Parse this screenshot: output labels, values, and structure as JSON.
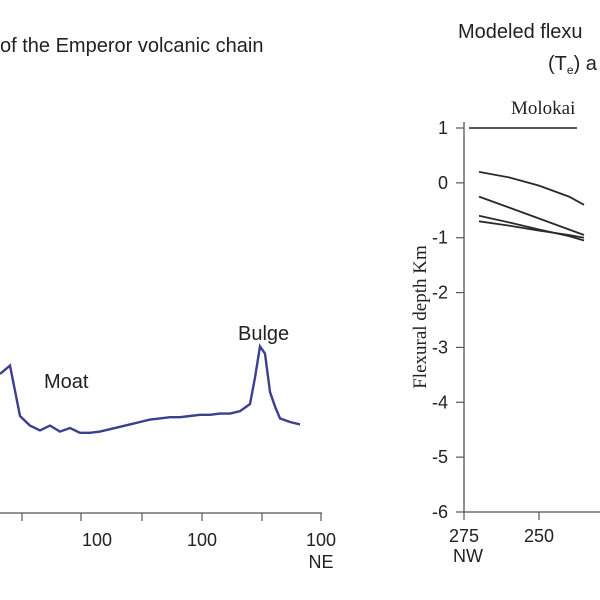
{
  "chart_data": [
    {
      "type": "line",
      "title": "of the Emperor volcanic chain",
      "xlabel": "NE",
      "x_tick_labels": [
        "100",
        "100",
        "100"
      ],
      "annotations": [
        "Bulge",
        "Moat"
      ],
      "colors": {
        "profile": "#3b3f8c"
      },
      "series": [
        {
          "values_note_free": true,
          "x": [
            0,
            10,
            20,
            30,
            40,
            50,
            60,
            70,
            80,
            90,
            100,
            110,
            120,
            130,
            140,
            150,
            160,
            170,
            180,
            190,
            200,
            210,
            220,
            230,
            240,
            250,
            255,
            260,
            265,
            270,
            275,
            280,
            290,
            300
          ],
          "y": [
            0.55,
            0.62,
            0.2,
            0.12,
            0.08,
            0.12,
            0.07,
            0.1,
            0.06,
            0.06,
            0.07,
            0.09,
            0.11,
            0.13,
            0.15,
            0.17,
            0.18,
            0.19,
            0.19,
            0.2,
            0.21,
            0.21,
            0.22,
            0.22,
            0.24,
            0.3,
            0.52,
            0.78,
            0.72,
            0.4,
            0.28,
            0.18,
            0.15,
            0.13
          ]
        }
      ]
    },
    {
      "type": "line",
      "title": "Modeled flexu",
      "subtitle_prefix": "(T",
      "subtitle_sub": "e",
      "subtitle_suffix": ") a",
      "ylabel": "Flexural depth Km",
      "xlabel": "NW",
      "ylim": [
        -6,
        1
      ],
      "y_ticks": [
        1,
        0,
        -1,
        -2,
        -3,
        -4,
        -5,
        -6
      ],
      "x_tick_labels": [
        "275",
        "250"
      ],
      "annotations": [
        "Molokai"
      ],
      "series": [
        {
          "x": [
            270,
            260,
            250,
            240,
            235
          ],
          "y": [
            0.2,
            0.1,
            -0.05,
            -0.25,
            -0.4
          ]
        },
        {
          "x": [
            270,
            260,
            250,
            240,
            235
          ],
          "y": [
            -0.25,
            -0.45,
            -0.65,
            -0.85,
            -0.95
          ]
        },
        {
          "x": [
            270,
            260,
            250,
            240,
            235
          ],
          "y": [
            -0.6,
            -0.72,
            -0.85,
            -0.97,
            -1.05
          ]
        },
        {
          "x": [
            270,
            260,
            250,
            240,
            235
          ],
          "y": [
            -0.7,
            -0.78,
            -0.87,
            -0.95,
            -1.0
          ]
        }
      ],
      "reference_line": {
        "label": "Molokai",
        "x": [
          270,
          250
        ],
        "y": [
          1,
          1
        ]
      }
    }
  ]
}
